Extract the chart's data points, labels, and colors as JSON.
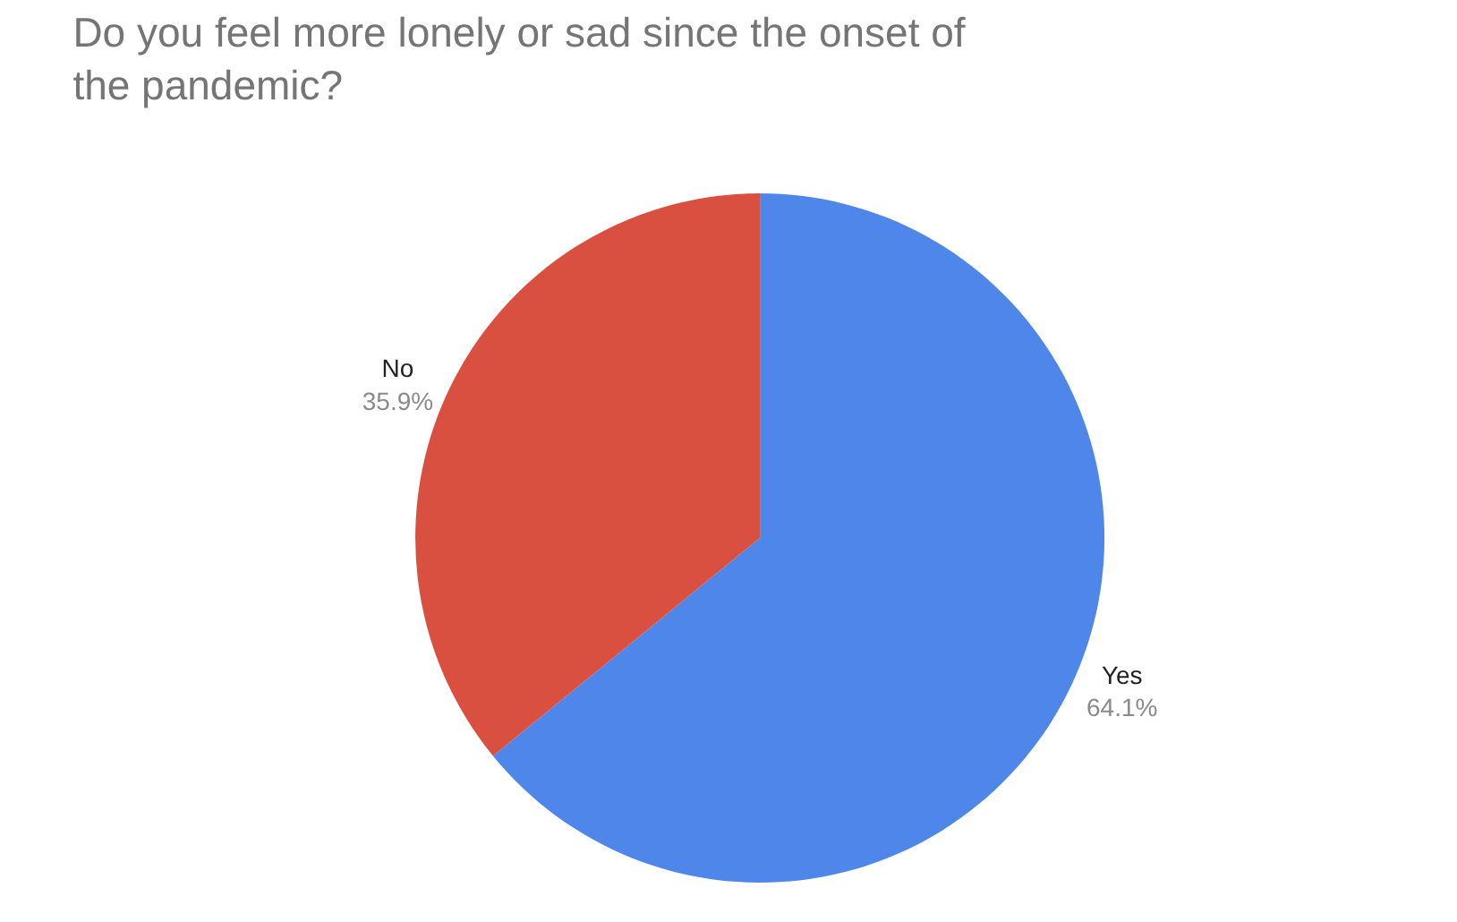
{
  "chart_data": {
    "type": "pie",
    "title": "Do you feel more lonely or sad since the onset of the pandemic?",
    "categories": [
      "Yes",
      "No"
    ],
    "values": [
      64.1,
      35.9
    ],
    "value_labels": [
      "64.1%",
      "35.9%"
    ],
    "colors": [
      "#4e86ea",
      "#d95040"
    ],
    "legend": false
  }
}
